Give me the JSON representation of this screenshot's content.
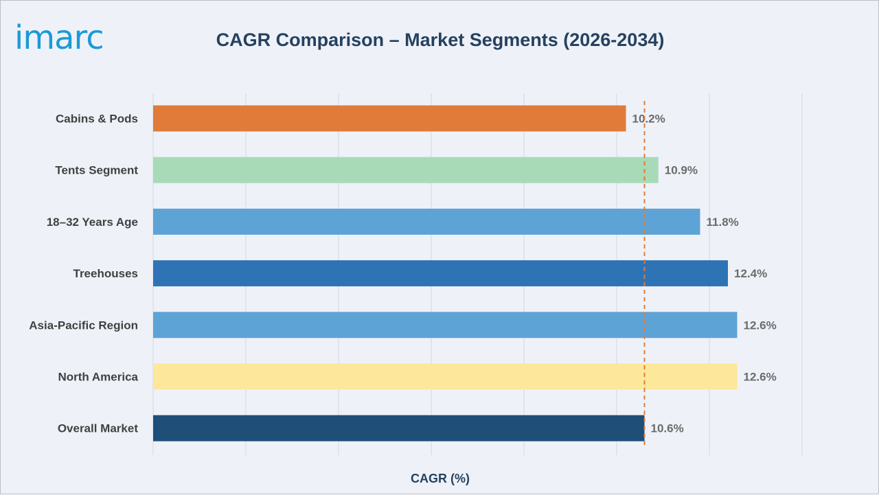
{
  "brand": {
    "logo_text": "imarc",
    "logo_color": "#1a9ad6"
  },
  "chart_data": {
    "type": "bar",
    "orientation": "horizontal",
    "title": "CAGR Comparison – Market Segments (2026-2034)",
    "xlabel": "CAGR (%)",
    "ylabel": "",
    "categories": [
      "Cabins & Pods",
      "Tents Segment",
      "18–32 Years Age",
      "Treehouses",
      "Asia-Pacific Region",
      "North America",
      "Overall Market"
    ],
    "values": [
      10.2,
      10.9,
      11.8,
      12.4,
      12.6,
      12.6,
      10.6
    ],
    "value_labels": [
      "10.2%",
      "10.9%",
      "11.8%",
      "12.4%",
      "12.6%",
      "12.6%",
      "10.6%"
    ],
    "colors": [
      "#e07b39",
      "#a8dab8",
      "#5ea3d6",
      "#2e74b5",
      "#5ea3d6",
      "#fde79a",
      "#1f4e79"
    ],
    "xlim": [
      0,
      14
    ],
    "vertical_gridlines": true,
    "reference_line": {
      "value": 10.6,
      "style": "dashed",
      "color": "#e07b39"
    }
  }
}
